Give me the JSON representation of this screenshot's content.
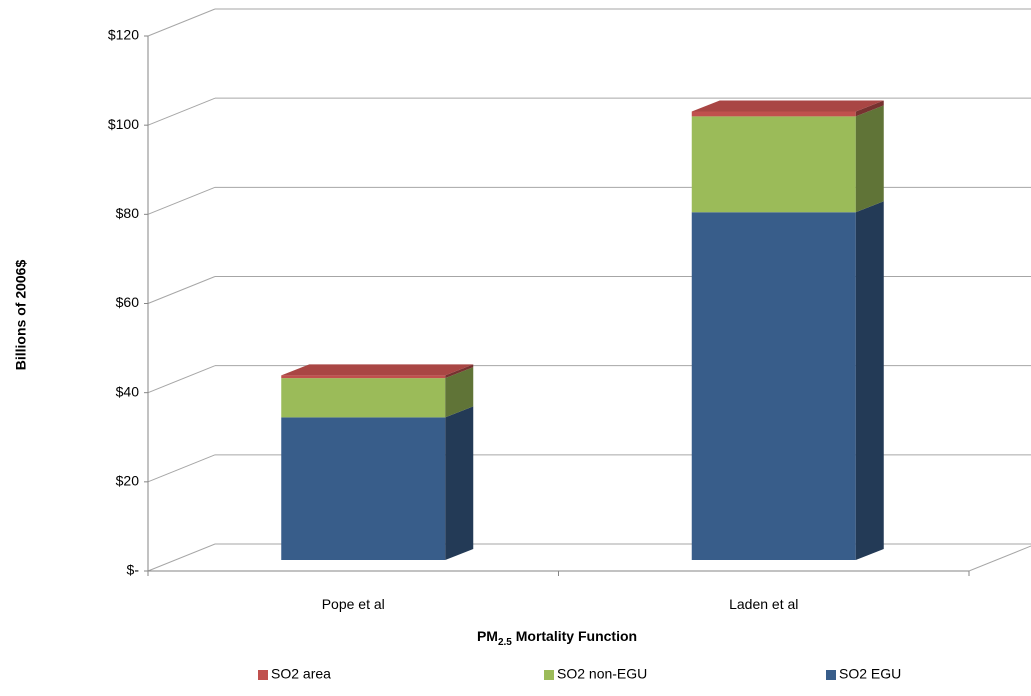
{
  "chart_data": {
    "type": "bar",
    "stacked": true,
    "three_d": true,
    "categories": [
      "Pope et al",
      "Laden et al"
    ],
    "series": [
      {
        "name": "SO2 EGU",
        "values": [
          32,
          78
        ],
        "color": "#385D8A"
      },
      {
        "name": "SO2 non-EGU",
        "values": [
          8.8,
          21.5
        ],
        "color": "#9BBB59"
      },
      {
        "name": "SO2 area",
        "values": [
          0.6,
          1.1
        ],
        "color": "#C0504D"
      }
    ],
    "ylim": [
      0,
      120
    ],
    "yticks": [
      0,
      20,
      40,
      60,
      80,
      100,
      120
    ],
    "ytick_labels": [
      "$-",
      "$20",
      "$40",
      "$60",
      "$80",
      "$100",
      "$120"
    ],
    "ylabel": "Billions of 2006$",
    "xlabel": {
      "main": "PM",
      "sub": "2.5",
      "rest": " Mortality Function"
    },
    "grid": true,
    "legend_position": "bottom",
    "legend_order": [
      "SO2 area",
      "SO2 non-EGU",
      "SO2 EGU"
    ]
  }
}
